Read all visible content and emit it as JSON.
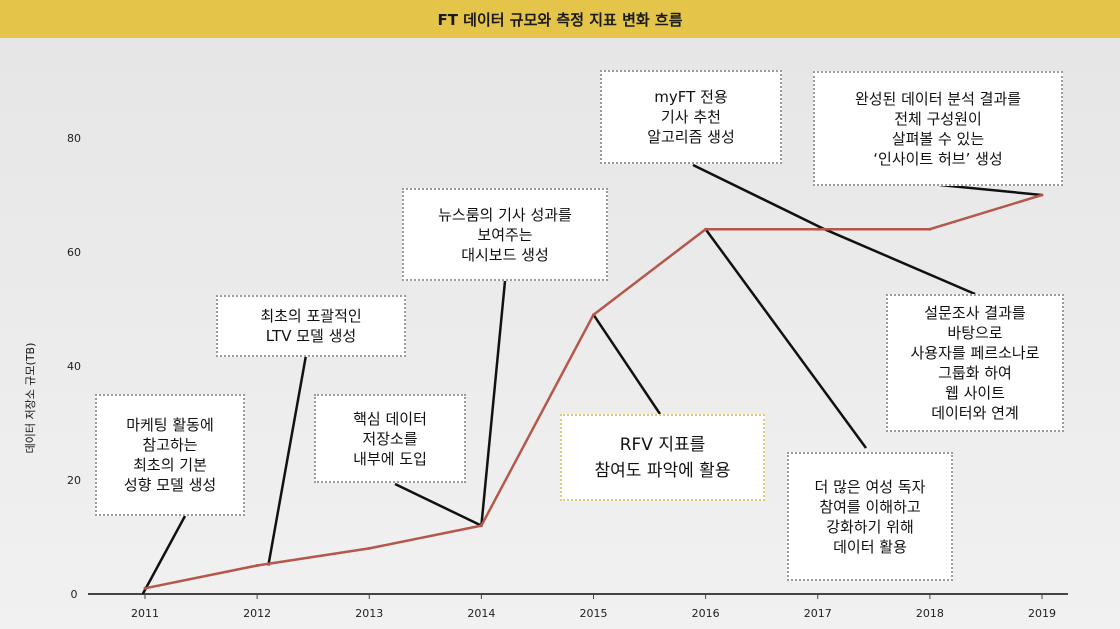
{
  "header": {
    "title": "FT 데이터 규모와 측정 지표 변화 흐름"
  },
  "chart_data": {
    "type": "line",
    "title": "FT 데이터 규모와 측정 지표 변화 흐름",
    "xlabel": "",
    "ylabel": "데이터 저장소 규모(TB)",
    "ylim": [
      0,
      90
    ],
    "yticks": [
      0,
      20,
      40,
      60,
      80
    ],
    "categories": [
      "2011",
      "2012",
      "2013",
      "2014",
      "2015",
      "2016",
      "2017",
      "2018",
      "2019"
    ],
    "series": [
      {
        "name": "데이터 저장소 규모(TB)",
        "color": "#b5574a",
        "x": [
          2011,
          2012,
          2013,
          2014,
          2015,
          2016,
          2017,
          2018,
          2019
        ],
        "values": [
          1,
          5,
          8,
          12,
          49,
          64,
          64,
          64,
          70
        ]
      }
    ],
    "annotations": [
      {
        "id": "a2011",
        "text": "마케팅 활동에\n참고하는\n최초의 기본\n성향 모델 생성",
        "anchor_year": 2010.98,
        "anchor_value": 0
      },
      {
        "id": "a2012",
        "text": "최초의 포괄적인\nLTV 모델 생성",
        "anchor_year": 2012.1,
        "anchor_value": 5
      },
      {
        "id": "a2013",
        "text": "핵심 데이터\n저장소를\n내부에 도입",
        "anchor_year": 2014,
        "anchor_value": 12
      },
      {
        "id": "a2014",
        "text": "뉴스룸의 기사 성과를\n보여주는\n대시보드 생성",
        "anchor_year": 2014,
        "anchor_value": 12
      },
      {
        "id": "a2015",
        "text": "RFV 지표를\n참여도 파악에 활용",
        "anchor_year": 2015,
        "anchor_value": 49
      },
      {
        "id": "a2016",
        "text": "myFT 전용\n기사 추천\n알고리즘 생성",
        "anchor_year": 2017.06,
        "anchor_value": 64
      },
      {
        "id": "a2017",
        "text": "더 많은 여성 독자\n참여를 이해하고\n강화하기 위해\n데이터 활용",
        "anchor_year": 2016,
        "anchor_value": 64
      },
      {
        "id": "a2018",
        "text": "설문조사 결과를\n바탕으로\n사용자를 페르소나로\n그룹화 하여\n웹 사이트\n데이터와 연계",
        "anchor_year": 2017.06,
        "anchor_value": 64
      },
      {
        "id": "a2019",
        "text": "완성된 데이터 분석 결과를\n전체 구성원이\n살펴볼 수 있는\n‘인사이트 허브’ 생성",
        "anchor_year": 2019,
        "anchor_value": 70
      }
    ]
  }
}
